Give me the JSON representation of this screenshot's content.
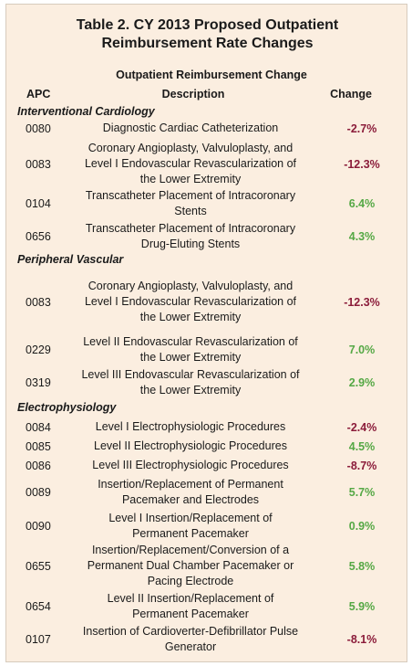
{
  "title": {
    "line1": "Table 2. CY 2013 Proposed Outpatient",
    "line2": "Reimbursement Rate Changes"
  },
  "header": {
    "super": "Outpatient Reimbursement Change",
    "apc": "APC",
    "description": "Description",
    "change": "Change"
  },
  "sections": [
    {
      "name": "Interventional Cardiology",
      "rows": [
        {
          "apc": "0080",
          "description": "Diagnostic Cardiac Catheterization",
          "change": "-2.7%"
        },
        {
          "apc": "0083",
          "description": "Coronary Angioplasty, Valvuloplasty, and Level I Endovascular Revascularization of the Lower Extremity",
          "change": "-12.3%"
        },
        {
          "apc": "0104",
          "description": "Transcatheter Placement of Intracoronary Stents",
          "change": "6.4%"
        },
        {
          "apc": "0656",
          "description": "Transcatheter Placement of Intracoronary Drug-Eluting Stents",
          "change": "4.3%"
        }
      ]
    },
    {
      "name": "Peripheral Vascular",
      "rows": [
        {
          "apc": "0083",
          "description": "Coronary Angioplasty, Valvuloplasty, and Level I Endovascular Revascularization of the Lower Extremity",
          "change": "-12.3%"
        },
        {
          "apc": "0229",
          "description": "Level II Endovascular Revascularization of the Lower Extremity",
          "change": "7.0%"
        },
        {
          "apc": "0319",
          "description": "Level III Endovascular Revascularization of the Lower Extremity",
          "change": "2.9%"
        }
      ]
    },
    {
      "name": "Electrophysiology",
      "rows": [
        {
          "apc": "0084",
          "description": "Level I Electrophysiologic Procedures",
          "change": "-2.4%"
        },
        {
          "apc": "0085",
          "description": "Level II Electrophysiologic Procedures",
          "change": "4.5%"
        },
        {
          "apc": "0086",
          "description": "Level III Electrophysiologic Procedures",
          "change": "-8.7%"
        },
        {
          "apc": "0089",
          "description": "Insertion/Replacement of Permanent Pacemaker and Electrodes",
          "change": "5.7%"
        },
        {
          "apc": "0090",
          "description": "Level I Insertion/Replacement of Permanent Pacemaker",
          "change": "0.9%"
        },
        {
          "apc": "0655",
          "description": "Insertion/Replacement/Conversion of a Permanent Dual Chamber Pacemaker or Pacing Electrode",
          "change": "5.8%"
        },
        {
          "apc": "0654",
          "description": "Level II Insertion/Replacement of Permanent Pacemaker",
          "change": "5.9%"
        },
        {
          "apc": "0107",
          "description": "Insertion of Cardioverter-Defibrillator Pulse Generator",
          "change": "-8.1%"
        }
      ]
    }
  ],
  "colors": {
    "background": "#fbeee0",
    "negative": "#8b1c3a",
    "positive": "#55a845"
  }
}
